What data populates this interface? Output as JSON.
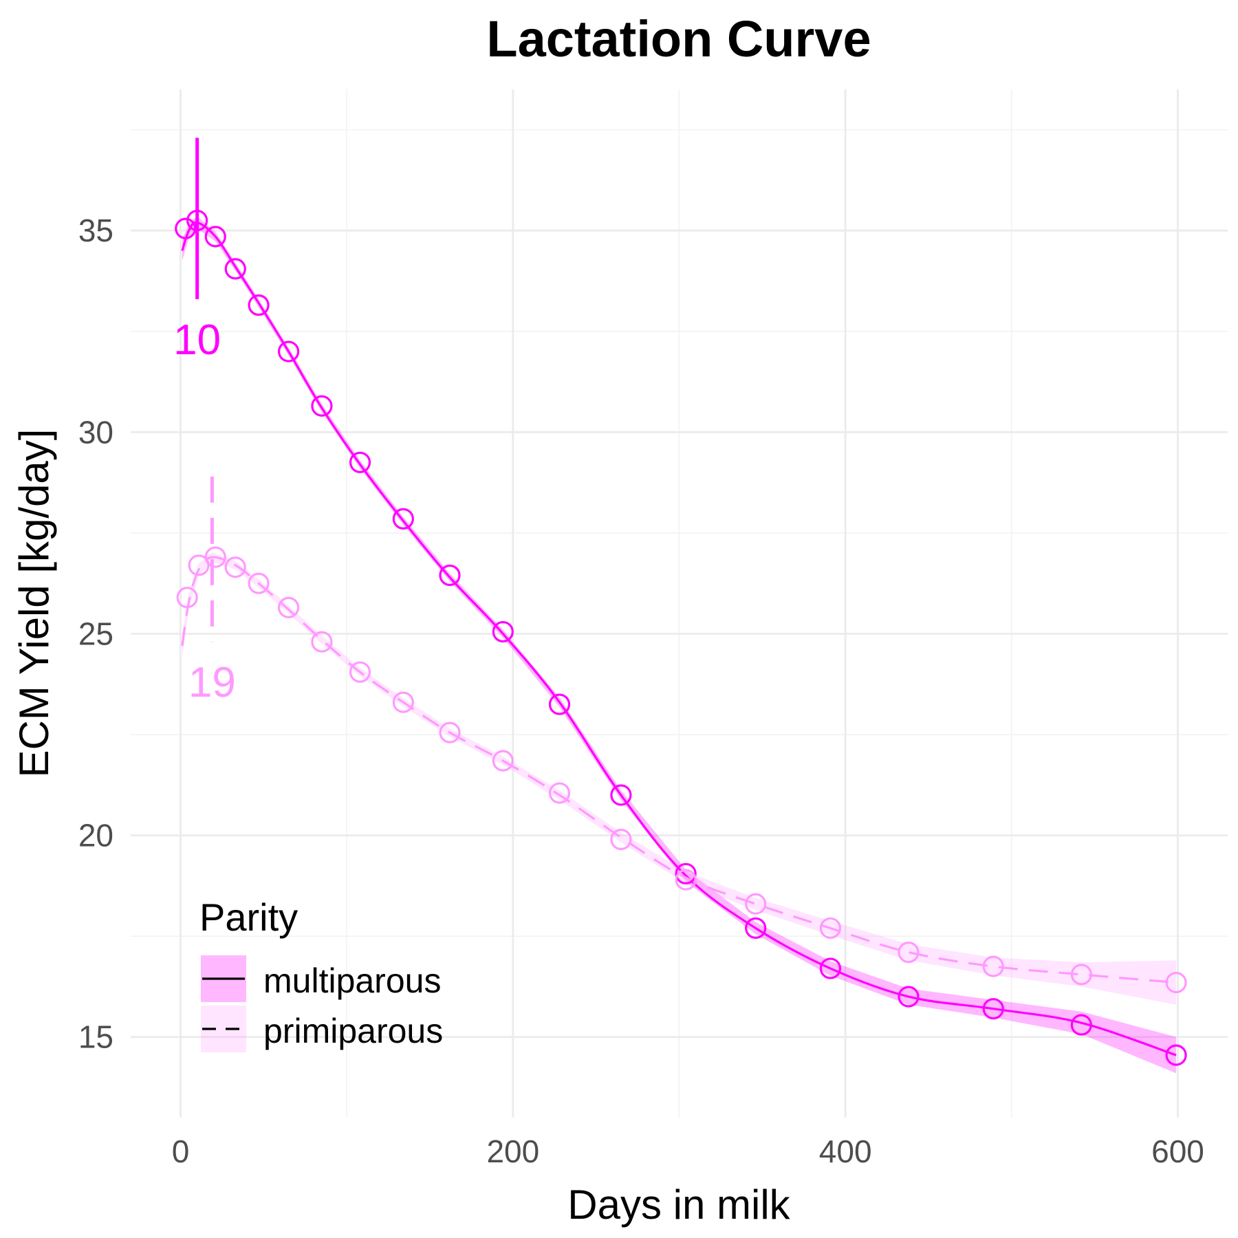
{
  "chart_data": {
    "type": "line",
    "title": "Lactation Curve",
    "xlabel": "Days in milk",
    "ylabel": "ECM Yield [kg/day]",
    "xlim": [
      -30,
      630
    ],
    "ylim": [
      13,
      38.5
    ],
    "x_ticks": [
      0,
      200,
      400,
      600
    ],
    "x_minor_ticks": [
      100,
      300,
      500
    ],
    "y_ticks": [
      15,
      20,
      25,
      30,
      35
    ],
    "y_minor_ticks": [
      17.5,
      22.5,
      27.5,
      32.5,
      37.5
    ],
    "grid": true,
    "legend": {
      "title": "Parity",
      "position": "bottom-left"
    },
    "series": [
      {
        "name": "multiparous",
        "line_style": "solid",
        "color": "#ff00ff",
        "band_color": "#ff00ff",
        "band_opacity": 0.28,
        "points": [
          {
            "x": 3,
            "y": 35.05
          },
          {
            "x": 10,
            "y": 35.25
          },
          {
            "x": 21,
            "y": 34.85
          },
          {
            "x": 33,
            "y": 34.05
          },
          {
            "x": 47,
            "y": 33.15
          },
          {
            "x": 65,
            "y": 32.0
          },
          {
            "x": 85,
            "y": 30.65
          },
          {
            "x": 108,
            "y": 29.25
          },
          {
            "x": 134,
            "y": 27.85
          },
          {
            "x": 162,
            "y": 26.45
          },
          {
            "x": 194,
            "y": 25.05
          },
          {
            "x": 228,
            "y": 23.25
          },
          {
            "x": 265,
            "y": 21.0
          },
          {
            "x": 304,
            "y": 19.05
          },
          {
            "x": 346,
            "y": 17.7
          },
          {
            "x": 391,
            "y": 16.7
          },
          {
            "x": 438,
            "y": 16.0
          },
          {
            "x": 489,
            "y": 15.7
          },
          {
            "x": 542,
            "y": 15.3
          },
          {
            "x": 599,
            "y": 14.55
          }
        ],
        "fit": [
          {
            "x": 1,
            "y": 34.5
          },
          {
            "x": 5,
            "y": 35.0
          },
          {
            "x": 10,
            "y": 35.2
          },
          {
            "x": 21,
            "y": 34.85
          },
          {
            "x": 33,
            "y": 34.1
          },
          {
            "x": 47,
            "y": 33.2
          },
          {
            "x": 65,
            "y": 32.0
          },
          {
            "x": 85,
            "y": 30.6
          },
          {
            "x": 108,
            "y": 29.2
          },
          {
            "x": 134,
            "y": 27.8
          },
          {
            "x": 162,
            "y": 26.4
          },
          {
            "x": 194,
            "y": 25.0
          },
          {
            "x": 228,
            "y": 23.3
          },
          {
            "x": 265,
            "y": 21.0
          },
          {
            "x": 304,
            "y": 19.0
          },
          {
            "x": 346,
            "y": 17.7
          },
          {
            "x": 391,
            "y": 16.7
          },
          {
            "x": 438,
            "y": 16.0
          },
          {
            "x": 489,
            "y": 15.7
          },
          {
            "x": 542,
            "y": 15.35
          },
          {
            "x": 599,
            "y": 14.55
          }
        ],
        "band_halfwidth": [
          0.25,
          0.2,
          0.15,
          0.12,
          0.1,
          0.1,
          0.1,
          0.1,
          0.1,
          0.1,
          0.1,
          0.1,
          0.12,
          0.12,
          0.15,
          0.15,
          0.18,
          0.2,
          0.22,
          0.28,
          0.45
        ],
        "peak": {
          "day": 10,
          "y_top": 37.3,
          "y_bottom": 33.3,
          "label": "10"
        }
      },
      {
        "name": "primiparous",
        "line_style": "dashed",
        "color": "#ff99ff",
        "band_color": "#ff99ff",
        "band_opacity": 0.25,
        "points": [
          {
            "x": 4,
            "y": 25.9
          },
          {
            "x": 11,
            "y": 26.7
          },
          {
            "x": 21,
            "y": 26.9
          },
          {
            "x": 33,
            "y": 26.65
          },
          {
            "x": 47,
            "y": 26.25
          },
          {
            "x": 65,
            "y": 25.65
          },
          {
            "x": 85,
            "y": 24.8
          },
          {
            "x": 108,
            "y": 24.05
          },
          {
            "x": 134,
            "y": 23.3
          },
          {
            "x": 162,
            "y": 22.55
          },
          {
            "x": 194,
            "y": 21.85
          },
          {
            "x": 228,
            "y": 21.05
          },
          {
            "x": 265,
            "y": 19.9
          },
          {
            "x": 304,
            "y": 18.9
          },
          {
            "x": 346,
            "y": 18.3
          },
          {
            "x": 391,
            "y": 17.7
          },
          {
            "x": 438,
            "y": 17.1
          },
          {
            "x": 489,
            "y": 16.75
          },
          {
            "x": 542,
            "y": 16.55
          },
          {
            "x": 599,
            "y": 16.35
          }
        ],
        "fit": [
          {
            "x": 1,
            "y": 24.7
          },
          {
            "x": 5,
            "y": 25.8
          },
          {
            "x": 11,
            "y": 26.6
          },
          {
            "x": 19,
            "y": 26.9
          },
          {
            "x": 33,
            "y": 26.7
          },
          {
            "x": 47,
            "y": 26.25
          },
          {
            "x": 65,
            "y": 25.6
          },
          {
            "x": 85,
            "y": 24.85
          },
          {
            "x": 108,
            "y": 24.05
          },
          {
            "x": 134,
            "y": 23.3
          },
          {
            "x": 162,
            "y": 22.55
          },
          {
            "x": 194,
            "y": 21.85
          },
          {
            "x": 228,
            "y": 21.0
          },
          {
            "x": 265,
            "y": 19.95
          },
          {
            "x": 304,
            "y": 18.95
          },
          {
            "x": 346,
            "y": 18.3
          },
          {
            "x": 391,
            "y": 17.7
          },
          {
            "x": 438,
            "y": 17.1
          },
          {
            "x": 489,
            "y": 16.75
          },
          {
            "x": 542,
            "y": 16.55
          },
          {
            "x": 599,
            "y": 16.35
          }
        ],
        "band_halfwidth": [
          0.3,
          0.2,
          0.15,
          0.12,
          0.1,
          0.1,
          0.1,
          0.1,
          0.1,
          0.1,
          0.1,
          0.1,
          0.12,
          0.12,
          0.15,
          0.15,
          0.18,
          0.2,
          0.22,
          0.3,
          0.55
        ],
        "peak": {
          "day": 19,
          "y_top": 28.9,
          "y_bottom": 24.8,
          "label": "19"
        }
      }
    ]
  }
}
